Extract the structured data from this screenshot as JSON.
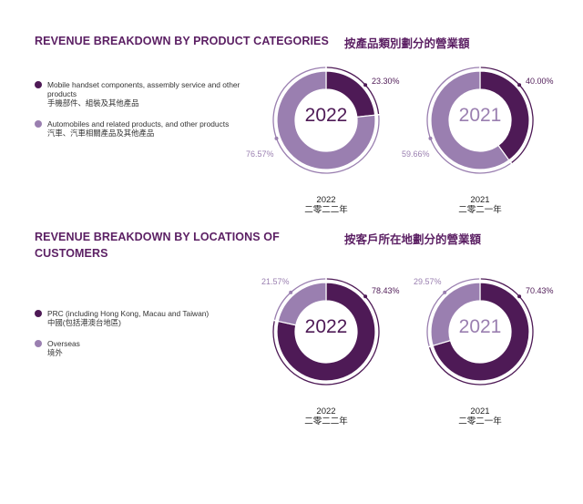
{
  "colors": {
    "dark": "#4e1a56",
    "light": "#9a7fb0",
    "heading": "#5b1f63"
  },
  "section1": {
    "title_en": "REVENUE BREAKDOWN BY PRODUCT CATEGORIES",
    "title_zh": "按產品類別劃分的營業額",
    "legend": [
      {
        "en": "Mobile handset components, assembly service and other products",
        "zh": "手機部件、組裝及其他產品",
        "color": "dark"
      },
      {
        "en": "Automobiles and related products, and other products",
        "zh": "汽車、汽車相關產品及其他產品",
        "color": "light"
      }
    ]
  },
  "section2": {
    "title_en": "REVENUE BREAKDOWN BY LOCATIONS OF CUSTOMERS",
    "title_zh": "按客戶所在地劃分的營業額",
    "legend": [
      {
        "en": "PRC (including Hong Kong, Macau and Taiwan)",
        "zh": "中國(包括港澳台地區)",
        "color": "dark"
      },
      {
        "en": "Overseas",
        "zh": "境外",
        "color": "light"
      }
    ]
  },
  "chart_data": [
    {
      "type": "pie",
      "section": "product",
      "center_label": "2022",
      "year_en": "2022",
      "year_zh": "二零二二年",
      "categories": [
        "Mobile handset components, assembly service and other products",
        "Automobiles and related products, and other products"
      ],
      "values": [
        23.3,
        76.57
      ],
      "labels": [
        "23.30%",
        "76.57%"
      ]
    },
    {
      "type": "pie",
      "section": "product",
      "center_label": "2021",
      "year_en": "2021",
      "year_zh": "二零二一年",
      "categories": [
        "Mobile handset components, assembly service and other products",
        "Automobiles and related products, and other products"
      ],
      "values": [
        40.0,
        59.66
      ],
      "labels": [
        "40.00%",
        "59.66%"
      ]
    },
    {
      "type": "pie",
      "section": "location",
      "center_label": "2022",
      "year_en": "2022",
      "year_zh": "二零二二年",
      "categories": [
        "PRC (including Hong Kong, Macau and Taiwan)",
        "Overseas"
      ],
      "values": [
        78.43,
        21.57
      ],
      "labels": [
        "78.43%",
        "21.57%"
      ]
    },
    {
      "type": "pie",
      "section": "location",
      "center_label": "2021",
      "year_en": "2021",
      "year_zh": "二零二一年",
      "categories": [
        "PRC (including Hong Kong, Macau and Taiwan)",
        "Overseas"
      ],
      "values": [
        70.43,
        29.57
      ],
      "labels": [
        "70.43%",
        "29.57%"
      ]
    }
  ]
}
